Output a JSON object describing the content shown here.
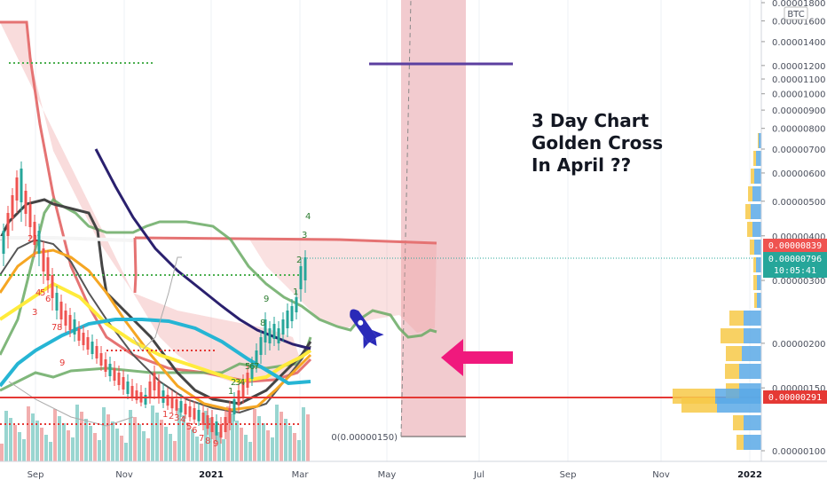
{
  "chart_data": {
    "type": "line",
    "currency_label": "BTC",
    "y_scale": "log",
    "y_ticks": [
      "0.00000100",
      "0.00000150",
      "0.00000200",
      "0.00000300",
      "0.00000400",
      "0.00000500",
      "0.00000600",
      "0.00000700",
      "0.00000800",
      "0.00000900",
      "0.00001000",
      "0.00001100",
      "0.00001200",
      "0.00001400",
      "0.00001600",
      "0.00001800"
    ],
    "x_ticks": [
      "Sep",
      "Nov",
      "2021",
      "Mar",
      "May",
      "Jul",
      "Sep",
      "Nov",
      "2022"
    ],
    "price_tags": [
      {
        "label": "0.00000839",
        "color": "#ef5350"
      },
      {
        "label": "0.00000796",
        "sub": "10:05:41",
        "color": "#26a69a"
      },
      {
        "label": "0.00000291",
        "color": "#e53935"
      }
    ],
    "annotation_lines": [
      "3 Day Chart",
      "Golden Cross",
      "In April ??"
    ],
    "fib_label": "0(0.00000150)",
    "support_level": 2.91e-06,
    "colors": {
      "support_line": "#e53935",
      "target_line": "#5b3fa0",
      "highlight_zone": "#e8a0a8",
      "arrow": "#f0197d",
      "rocket": "#2a2ab8"
    },
    "td_counts": [
      "9",
      "8",
      "7",
      "6",
      "5",
      "4",
      "3",
      "2",
      "1"
    ],
    "td_top_counts": [
      "1",
      "2",
      "3",
      "4"
    ]
  }
}
